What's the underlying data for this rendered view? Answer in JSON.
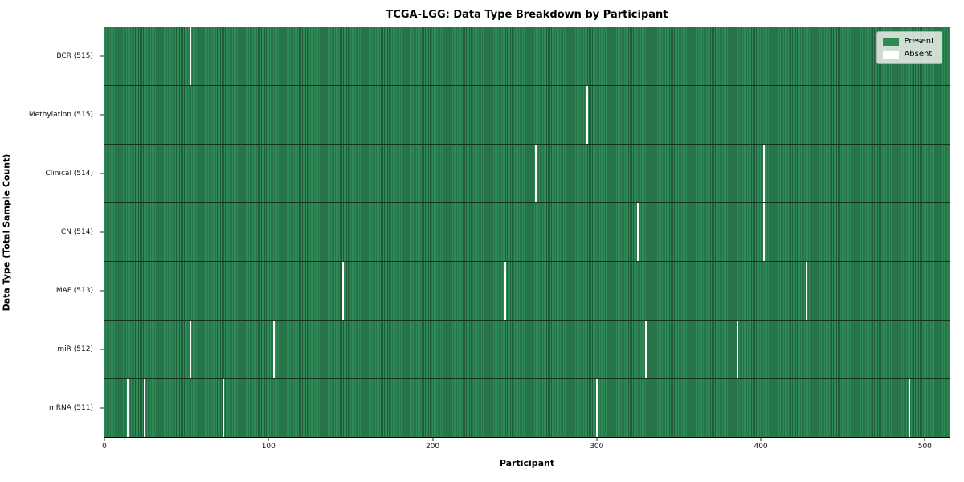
{
  "title": "TCGA-LGG: Data Type Breakdown by Participant",
  "chart_data": {
    "type": "heatmap",
    "title": "TCGA-LGG: Data Type Breakdown by Participant",
    "xlabel": "Participant",
    "ylabel": "Data Type (Total Sample Count)",
    "x_ticks": [
      0,
      100,
      200,
      300,
      400,
      500
    ],
    "x_range": [
      -0.5,
      515.5
    ],
    "n_participants": 516,
    "grid": false,
    "legend": {
      "position": "upper right",
      "entries": [
        {
          "label": "Present",
          "color": "#2e8b57"
        },
        {
          "label": "Absent",
          "color": "#ffffff"
        }
      ]
    },
    "colors": {
      "present_fill": "#2e8b57",
      "present_edge": "#1f5c3a",
      "absent_fill": "#ffffff"
    },
    "rows": [
      {
        "label": "BCR (515)",
        "present_count": 515,
        "absent_participants": [
          52
        ]
      },
      {
        "label": "Methylation (515)",
        "present_count": 515,
        "absent_participants": [
          294
        ]
      },
      {
        "label": "Clinical (514)",
        "present_count": 514,
        "absent_participants": [
          263,
          402
        ]
      },
      {
        "label": "CN (514)",
        "present_count": 514,
        "absent_participants": [
          325,
          402
        ]
      },
      {
        "label": "MAF (513)",
        "present_count": 513,
        "absent_participants": [
          145,
          244,
          428
        ]
      },
      {
        "label": "miR (512)",
        "present_count": 512,
        "absent_participants": [
          52,
          103,
          330,
          386
        ]
      },
      {
        "label": "mRNA (511)",
        "present_count": 511,
        "absent_participants": [
          14,
          24,
          72,
          300,
          491
        ]
      }
    ]
  }
}
